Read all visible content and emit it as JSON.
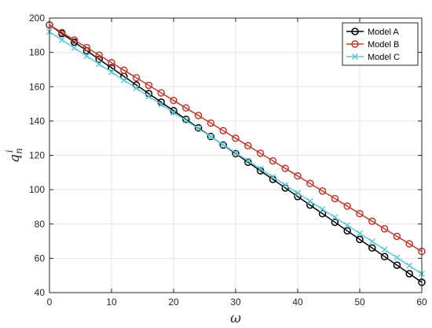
{
  "chart_data": {
    "type": "line",
    "title": "",
    "xlabel": "ω",
    "ylabel_main": "q",
    "ylabel_sub": "n",
    "ylabel_sup": "i",
    "xlim": [
      0,
      60
    ],
    "ylim": [
      40,
      200
    ],
    "xticks": [
      0,
      10,
      20,
      30,
      40,
      50,
      60
    ],
    "yticks": [
      40,
      60,
      80,
      100,
      120,
      140,
      160,
      180,
      200
    ],
    "grid": true,
    "legend_position": "top-right",
    "x": [
      0,
      2,
      4,
      6,
      8,
      10,
      12,
      14,
      16,
      18,
      20,
      22,
      24,
      26,
      28,
      30,
      32,
      34,
      36,
      38,
      40,
      42,
      44,
      46,
      48,
      50,
      52,
      54,
      56,
      58,
      60
    ],
    "series": [
      {
        "name": "Model A",
        "color": "#000000",
        "marker": "circle",
        "values": [
          196,
          191,
          186,
          181,
          176,
          171,
          166,
          161,
          156,
          151,
          146,
          141,
          136,
          131,
          126,
          121,
          116,
          111,
          106,
          101,
          96,
          91,
          86,
          81,
          76,
          71,
          66,
          61,
          56,
          51,
          46
        ]
      },
      {
        "name": "Model B",
        "color": "#c0392b",
        "marker": "circle",
        "values": [
          196,
          191.6,
          187.2,
          182.8,
          178.4,
          174,
          169.6,
          165.2,
          160.8,
          156.4,
          152,
          147.6,
          143.2,
          138.8,
          134.4,
          130,
          125.6,
          121.2,
          116.8,
          112.4,
          108,
          103.6,
          99.2,
          94.8,
          90.4,
          86,
          81.6,
          77.2,
          72.8,
          68.4,
          64
        ]
      },
      {
        "name": "Model C",
        "color": "#5bc8d8",
        "marker": "x",
        "values": [
          192,
          187.3,
          182.6,
          177.9,
          173.2,
          168.5,
          163.8,
          159.1,
          154.4,
          149.7,
          145,
          140.3,
          135.6,
          130.9,
          126.2,
          121.5,
          116.8,
          112.1,
          107.4,
          102.7,
          98,
          93.3,
          88.6,
          83.9,
          79.2,
          74.5,
          69.8,
          65.1,
          60.4,
          55.7,
          51
        ]
      }
    ]
  }
}
